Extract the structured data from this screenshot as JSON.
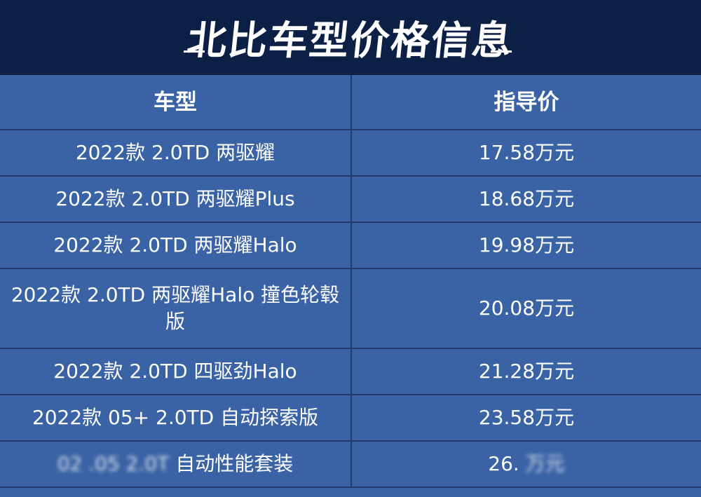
{
  "banner": {
    "title": "北比车型价格信息"
  },
  "table": {
    "headers": [
      "车型",
      "指导价"
    ],
    "rows": [
      {
        "model": "2022款 2.0TD 两驱耀",
        "price": "17.58万元"
      },
      {
        "model": "2022款 2.0TD 两驱耀Plus",
        "price": "18.68万元"
      },
      {
        "model": "2022款 2.0TD 两驱耀Halo",
        "price": "19.98万元"
      },
      {
        "model": "2022款 2.0TD 两驱耀Halo 撞色轮毂版",
        "price": "20.08万元"
      },
      {
        "model": "2022款 2.0TD 四驱劲Halo",
        "price": "21.28万元"
      },
      {
        "model": "2022款 05+ 2.0TD 自动探索版",
        "price": "23.58万元"
      }
    ],
    "last_row": {
      "model_obscured": "02  .05 2.0T",
      "model_visible": "自动性能套装",
      "price_visible": "26.",
      "price_obscured": "  万元"
    }
  }
}
